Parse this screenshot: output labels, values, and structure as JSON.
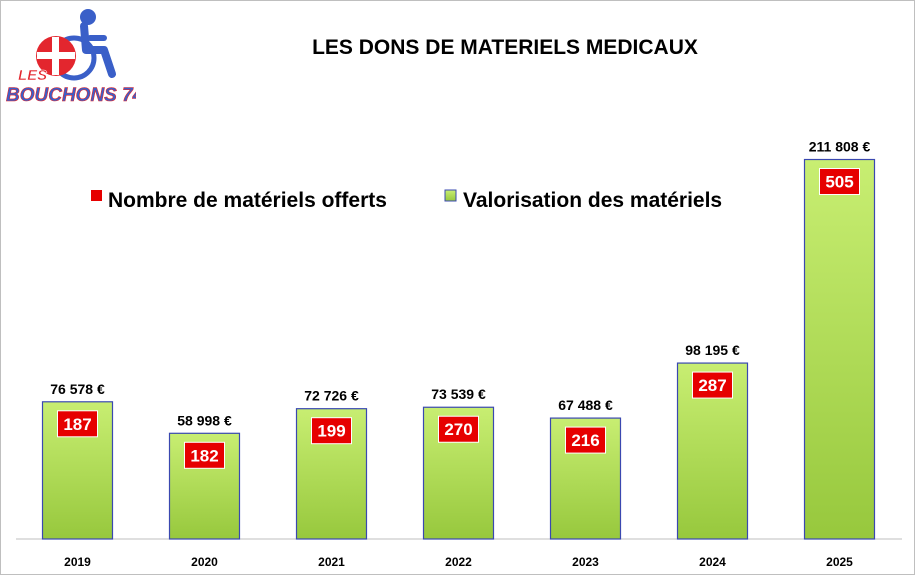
{
  "logo": {
    "line1": "LES",
    "line2": "BOUCHONS 74"
  },
  "chart_data": {
    "type": "bar",
    "title": "LES DONS DE MATERIELS MEDICAUX",
    "categories": [
      "2019",
      "2020",
      "2021",
      "2022",
      "2023",
      "2024",
      "2025"
    ],
    "series": [
      {
        "name": "Valorisation des matériels",
        "values": [
          76578,
          58998,
          72726,
          73539,
          67488,
          98195,
          211808
        ],
        "labels": [
          "76 578 €",
          "58 998 €",
          "72 726 €",
          "73 539 €",
          "67 488 €",
          "98 195 €",
          "211 808 €"
        ],
        "color": "#a8d64e"
      },
      {
        "name": "Nombre de matériels offerts",
        "values": [
          187,
          182,
          199,
          270,
          216,
          287,
          505
        ],
        "color": "#e60000"
      }
    ],
    "ylim": [
      0,
      240000
    ],
    "xlabel": "",
    "ylabel": "",
    "grid": false,
    "legend": "top"
  }
}
